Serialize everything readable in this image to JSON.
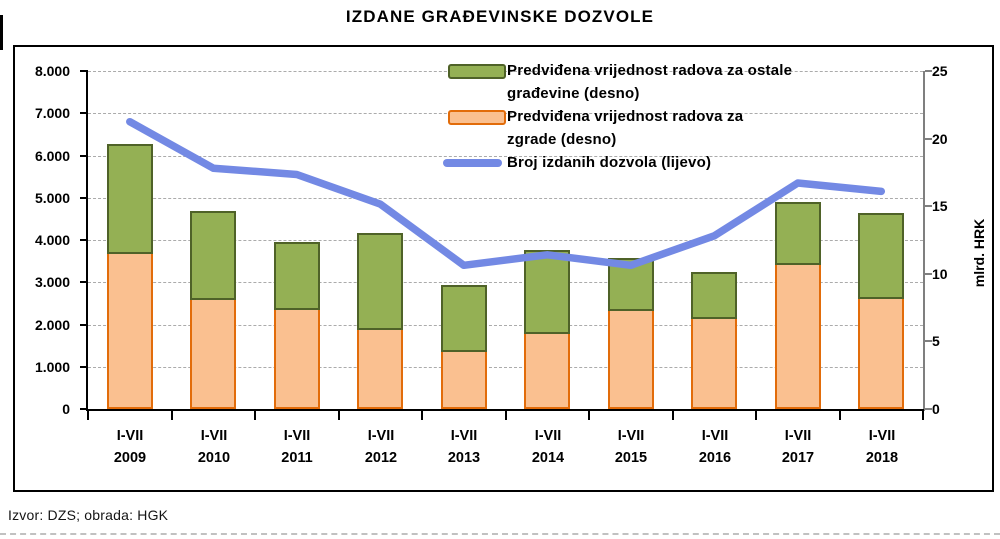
{
  "title": "IZDANE GRAĐEVINSKE DOZVOLE",
  "source_note": "Izvor: DZS; obrada: HGK",
  "chart_data": {
    "type": "bar+line",
    "title": "IZDANE GRAĐEVINSKE DOZVOLE",
    "categories": [
      "I-VII 2009",
      "I-VII 2010",
      "I-VII 2011",
      "I-VII 2012",
      "I-VII 2013",
      "I-VII 2014",
      "I-VII 2015",
      "I-VII 2016",
      "I-VII 2017",
      "I-VII 2018"
    ],
    "series": [
      {
        "name": "Predviđena vrijednost radova za zgrade (desno)",
        "type": "bar",
        "stack": "base",
        "axis": "right",
        "unit": "mlrd. HRK",
        "fill": "#FAC090",
        "stroke": "#E26C0A",
        "values": [
          11.6,
          8.2,
          7.5,
          6.0,
          4.4,
          5.7,
          7.4,
          6.8,
          10.8,
          8.3
        ]
      },
      {
        "name": "Predviđena vrijednost radova za ostale građevine (desno)",
        "type": "bar",
        "stack": "top",
        "axis": "right",
        "unit": "mlrd. HRK",
        "fill": "#94B054",
        "stroke": "#4F6228",
        "values": [
          8.0,
          6.4,
          4.9,
          7.0,
          4.8,
          6.1,
          3.8,
          3.3,
          4.5,
          6.2
        ]
      },
      {
        "name": "Broj izdanih dozvola (lijevo)",
        "type": "line",
        "axis": "left",
        "unit": "broj dozvola",
        "stroke": "#7389E4",
        "values": [
          6800,
          5700,
          5550,
          4850,
          3400,
          3650,
          3400,
          4100,
          5350,
          5150
        ]
      }
    ],
    "left_axis": {
      "min": 0,
      "max": 8000,
      "step": 1000,
      "tick_labels": [
        "0",
        "1.000",
        "2.000",
        "3.000",
        "4.000",
        "5.000",
        "6.000",
        "7.000",
        "8.000"
      ],
      "title": ""
    },
    "right_axis": {
      "min": 0,
      "max": 25,
      "step": 5,
      "tick_labels": [
        "0",
        "5",
        "10",
        "15",
        "20",
        "25"
      ],
      "title": "mlrd. HRK"
    },
    "grid": {
      "horizontal": "dashed",
      "color": "#ABABAB"
    },
    "legend": {
      "position": "top-right-inside",
      "items": [
        {
          "marker": "bar",
          "fill": "#94B054",
          "stroke": "#4F6228",
          "lines": [
            "Predviđena vrijednost radova za ostale",
            "građevine (desno)"
          ]
        },
        {
          "marker": "bar",
          "fill": "#FAC090",
          "stroke": "#E26C0A",
          "lines": [
            "Predviđena vrijednost radova za",
            "zgrade (desno)"
          ]
        },
        {
          "marker": "line",
          "fill": "#7389E4",
          "stroke": "#7389E4",
          "lines": [
            "Broj izdanih dozvola (lijevo)"
          ]
        }
      ]
    }
  }
}
